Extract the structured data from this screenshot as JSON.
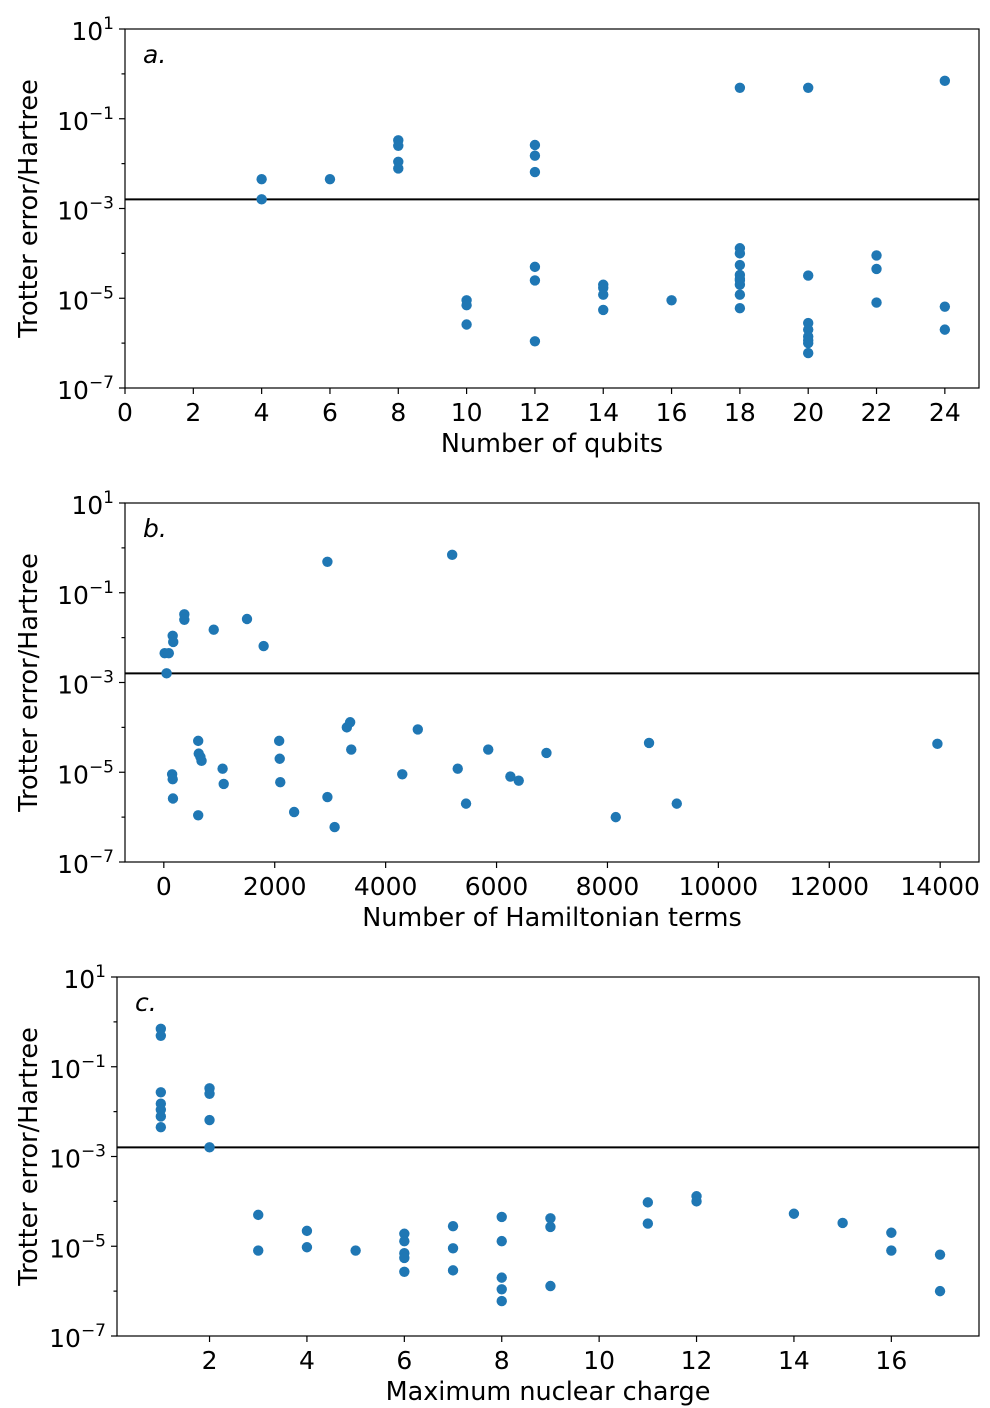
{
  "colors": {
    "marker": "#1f77b4",
    "axes": "#000000",
    "background": "#ffffff"
  },
  "chart_data": [
    {
      "type": "scatter",
      "panel_label": "a.",
      "xlabel": "Number of qubits",
      "ylabel": "Trotter error/Hartree",
      "xlim": [
        0,
        25
      ],
      "ylim": [
        1e-07,
        10
      ],
      "yscale": "log",
      "xticks": [
        0,
        2,
        4,
        6,
        8,
        10,
        12,
        14,
        16,
        18,
        20,
        22,
        24
      ],
      "xtick_labels": [
        "0",
        "2",
        "4",
        "6",
        "8",
        "10",
        "12",
        "14",
        "16",
        "18",
        "20",
        "22",
        "24"
      ],
      "yticks": [
        {
          "base": "10",
          "exp": "1",
          "value": 10
        },
        {
          "base": "10",
          "exp": "−1",
          "value": 0.1
        },
        {
          "base": "10",
          "exp": "−3",
          "value": 0.001
        },
        {
          "base": "10",
          "exp": "−5",
          "value": 1e-05
        },
        {
          "base": "10",
          "exp": "−7",
          "value": 1e-07
        }
      ],
      "reference_line_y": 0.0016,
      "grid": false,
      "x": [
        4,
        4,
        6,
        8,
        8,
        8,
        8,
        10,
        10,
        10,
        12,
        12,
        12,
        12,
        12,
        12,
        14,
        14,
        14,
        14,
        16,
        18,
        18,
        18,
        18,
        18,
        18,
        18,
        18,
        18,
        18,
        20,
        20,
        20,
        20,
        20,
        20,
        20,
        20,
        22,
        22,
        22,
        24,
        24,
        24
      ],
      "y": [
        0.0045,
        0.0016,
        0.0045,
        0.033,
        0.025,
        0.011,
        0.0078,
        9e-06,
        7e-06,
        2.6e-06,
        0.026,
        0.015,
        0.0065,
        5e-05,
        2.5e-05,
        1.1e-06,
        2e-05,
        1.7e-05,
        1.2e-05,
        5.5e-06,
        9e-06,
        0.00013,
        0.0001,
        5.5e-05,
        3.3e-05,
        2.7e-05,
        2e-05,
        1.2e-05,
        6e-06,
        0.49,
        2.5e-05,
        3.2e-05,
        2.8e-06,
        2e-06,
        1.4e-06,
        1e-06,
        6e-07,
        0.49,
        1.15e-06,
        9e-05,
        4.5e-05,
        8e-06,
        0.7,
        6.5e-06,
        2e-06
      ]
    },
    {
      "type": "scatter",
      "panel_label": "b.",
      "xlabel": "Number of Hamiltonian terms",
      "ylabel": "Trotter error/Hartree",
      "xlim": [
        -700,
        14700
      ],
      "ylim": [
        1e-07,
        10
      ],
      "yscale": "log",
      "xticks": [
        0,
        2000,
        4000,
        6000,
        8000,
        10000,
        12000,
        14000
      ],
      "xtick_labels": [
        "0",
        "2000",
        "4000",
        "6000",
        "8000",
        "10000",
        "12000",
        "14000"
      ],
      "yticks": [
        {
          "base": "10",
          "exp": "1",
          "value": 10
        },
        {
          "base": "10",
          "exp": "−1",
          "value": 0.1
        },
        {
          "base": "10",
          "exp": "−3",
          "value": 0.001
        },
        {
          "base": "10",
          "exp": "−5",
          "value": 1e-05
        },
        {
          "base": "10",
          "exp": "−7",
          "value": 1e-07
        }
      ],
      "reference_line_y": 0.0016,
      "grid": false,
      "x": [
        15,
        90,
        50,
        160,
        170,
        370,
        370,
        900,
        1500,
        1800,
        2950,
        5200,
        620,
        630,
        660,
        680,
        1060,
        1080,
        150,
        160,
        165,
        620,
        2080,
        2090,
        2100,
        2350,
        2950,
        3080,
        3300,
        3360,
        3380,
        4300,
        4580,
        5300,
        5450,
        5850,
        6250,
        6400,
        6900,
        8150,
        8750,
        9250,
        13950
      ],
      "y": [
        0.0045,
        0.0045,
        0.0016,
        0.011,
        0.008,
        0.033,
        0.025,
        0.015,
        0.026,
        0.0065,
        0.49,
        0.7,
        5e-05,
        2.6e-05,
        2.2e-05,
        1.8e-05,
        1.2e-05,
        5.5e-06,
        9e-06,
        7e-06,
        2.6e-06,
        1.1e-06,
        5e-05,
        2e-05,
        6e-06,
        1.3e-06,
        2.8e-06,
        6e-07,
        0.0001,
        0.00013,
        3.2e-05,
        9e-06,
        9e-05,
        1.2e-05,
        2e-06,
        3.2e-05,
        8e-06,
        6.5e-06,
        2.7e-05,
        1e-06,
        4.5e-05,
        2e-06,
        4.3e-05
      ]
    },
    {
      "type": "scatter",
      "panel_label": "c.",
      "xlabel": "Maximum nuclear charge",
      "ylabel": "Trotter error/Hartree",
      "xlim": [
        0.1,
        17.8
      ],
      "ylim": [
        1e-07,
        10
      ],
      "yscale": "log",
      "xticks": [
        2,
        4,
        6,
        8,
        10,
        12,
        14,
        16
      ],
      "xtick_labels": [
        "2",
        "4",
        "6",
        "8",
        "10",
        "12",
        "14",
        "16"
      ],
      "yticks": [
        {
          "base": "10",
          "exp": "1",
          "value": 10
        },
        {
          "base": "10",
          "exp": "−1",
          "value": 0.1
        },
        {
          "base": "10",
          "exp": "−3",
          "value": 0.001
        },
        {
          "base": "10",
          "exp": "−5",
          "value": 1e-05
        },
        {
          "base": "10",
          "exp": "−7",
          "value": 1e-07
        }
      ],
      "reference_line_y": 0.0016,
      "grid": false,
      "x": [
        1,
        1,
        1,
        1,
        1,
        1,
        1,
        2,
        2,
        2,
        2,
        3,
        3,
        4,
        4,
        5,
        6,
        6,
        6,
        6,
        6,
        7,
        7,
        7,
        8,
        8,
        8,
        8,
        8,
        9,
        9,
        9,
        11,
        11,
        12,
        12,
        14,
        15,
        16,
        16,
        17,
        17
      ],
      "y": [
        0.7,
        0.49,
        0.027,
        0.015,
        0.011,
        0.0078,
        0.0045,
        0.033,
        0.025,
        0.0065,
        0.0016,
        5e-05,
        8e-06,
        2.2e-05,
        9.5e-06,
        8e-06,
        1.9e-05,
        1.3e-05,
        7e-06,
        5.5e-06,
        2.7e-06,
        2.8e-05,
        9e-06,
        2.9e-06,
        4.5e-05,
        1.3e-05,
        2e-06,
        1.1e-06,
        6e-07,
        4.2e-05,
        2.7e-05,
        1.3e-06,
        9.5e-05,
        3.2e-05,
        0.00013,
        0.0001,
        5.3e-05,
        3.3e-05,
        2e-05,
        8e-06,
        6.5e-06,
        1e-06
      ]
    }
  ]
}
